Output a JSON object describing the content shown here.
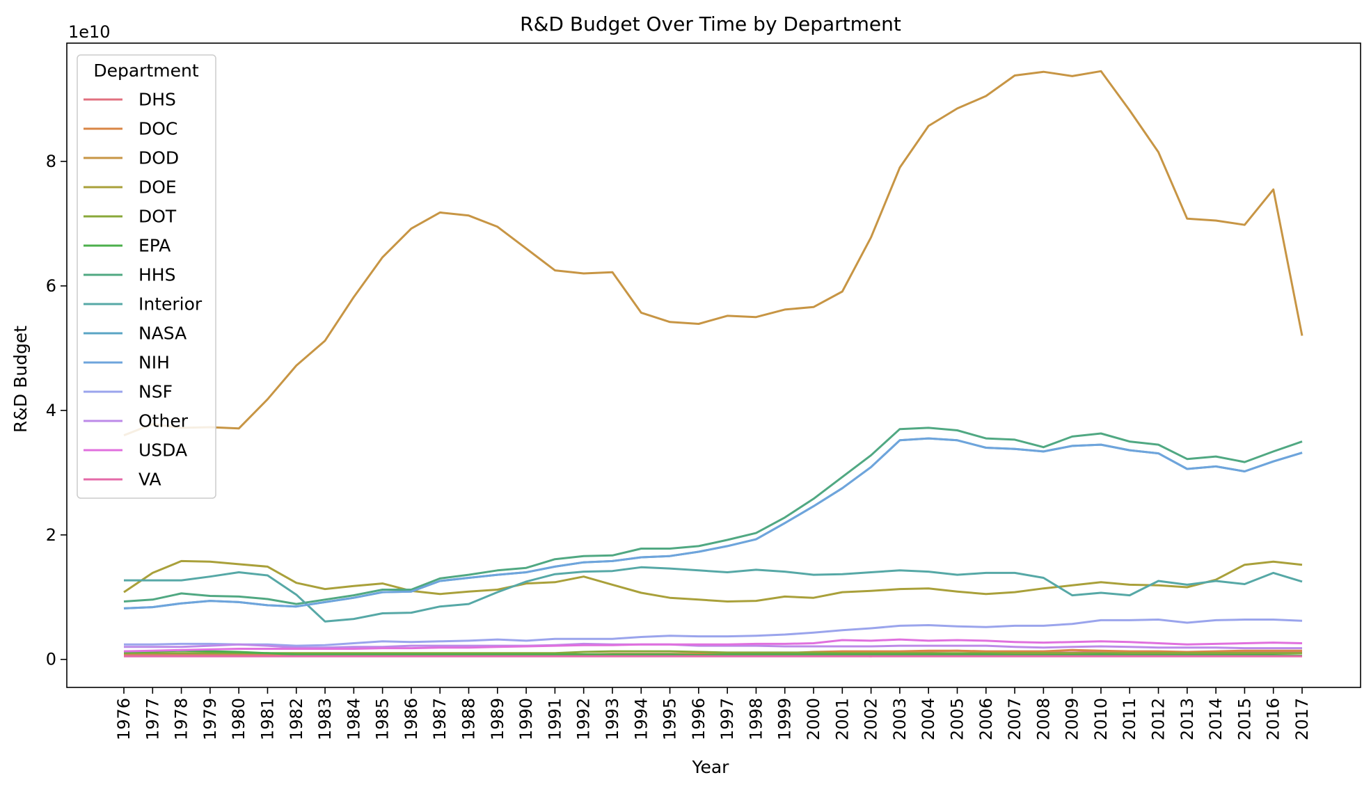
{
  "chart_data": {
    "type": "line",
    "title": "R&D Budget Over Time by Department",
    "xlabel": "Year",
    "ylabel": "R&D Budget",
    "y_offset_label": "1e10",
    "y_scale": 10000000000,
    "ylim": [
      -0.45,
      9.9
    ],
    "yticks": [
      0,
      2,
      4,
      6,
      8
    ],
    "grid": false,
    "legend": {
      "title": "Department",
      "placement": "upper-left"
    },
    "x": [
      "1976",
      "1977",
      "1978",
      "1979",
      "1980",
      "1981",
      "1982",
      "1983",
      "1984",
      "1985",
      "1986",
      "1987",
      "1988",
      "1989",
      "1990",
      "1991",
      "1992",
      "1993",
      "1994",
      "1995",
      "1996",
      "1997",
      "1998",
      "1999",
      "2000",
      "2001",
      "2002",
      "2003",
      "2004",
      "2005",
      "2006",
      "2007",
      "2008",
      "2009",
      "2010",
      "2011",
      "2012",
      "2013",
      "2014",
      "2015",
      "2016",
      "2017"
    ],
    "series": [
      {
        "name": "DHS",
        "color": "#e1707f",
        "values": [
          0.08,
          0.08,
          0.08,
          0.08,
          0.08,
          0.08,
          0.08,
          0.08,
          0.08,
          0.08,
          0.08,
          0.08,
          0.08,
          0.08,
          0.08,
          0.08,
          0.08,
          0.08,
          0.08,
          0.08,
          0.08,
          0.08,
          0.08,
          0.08,
          0.08,
          0.08,
          0.05,
          0.12,
          0.13,
          0.14,
          0.12,
          0.11,
          0.11,
          0.11,
          0.12,
          0.11,
          0.11,
          0.11,
          0.11,
          0.11,
          0.11,
          0.11
        ]
      },
      {
        "name": "DOC",
        "color": "#d98646",
        "values": [
          0.06,
          0.06,
          0.06,
          0.06,
          0.06,
          0.06,
          0.06,
          0.06,
          0.06,
          0.07,
          0.07,
          0.07,
          0.07,
          0.07,
          0.08,
          0.08,
          0.08,
          0.09,
          0.09,
          0.09,
          0.09,
          0.09,
          0.1,
          0.1,
          0.12,
          0.13,
          0.13,
          0.13,
          0.14,
          0.14,
          0.13,
          0.13,
          0.13,
          0.15,
          0.14,
          0.13,
          0.13,
          0.12,
          0.13,
          0.14,
          0.14,
          0.14
        ]
      },
      {
        "name": "DOD",
        "color": "#c79544",
        "values": [
          3.6,
          3.78,
          3.72,
          3.73,
          3.71,
          4.18,
          4.72,
          5.12,
          5.82,
          6.46,
          6.92,
          7.18,
          7.13,
          6.95,
          6.6,
          6.25,
          6.2,
          6.22,
          5.57,
          5.42,
          5.39,
          5.52,
          5.5,
          5.62,
          5.66,
          5.91,
          6.78,
          7.9,
          8.57,
          8.85,
          9.05,
          9.38,
          9.44,
          9.37,
          9.45,
          8.82,
          8.15,
          7.08,
          7.05,
          6.98,
          7.55,
          5.2
        ]
      },
      {
        "name": "DOE",
        "color": "#a9a03a",
        "values": [
          1.08,
          1.39,
          1.58,
          1.57,
          1.53,
          1.49,
          1.23,
          1.13,
          1.18,
          1.22,
          1.1,
          1.05,
          1.09,
          1.12,
          1.22,
          1.24,
          1.33,
          1.2,
          1.07,
          0.99,
          0.96,
          0.93,
          0.94,
          1.01,
          0.99,
          1.08,
          1.1,
          1.13,
          1.14,
          1.09,
          1.05,
          1.08,
          1.14,
          1.19,
          1.24,
          1.2,
          1.19,
          1.16,
          1.28,
          1.52,
          1.57,
          1.52
        ]
      },
      {
        "name": "DOT",
        "color": "#89a83a",
        "values": [
          0.1,
          0.1,
          0.1,
          0.1,
          0.1,
          0.1,
          0.1,
          0.1,
          0.1,
          0.1,
          0.1,
          0.1,
          0.1,
          0.1,
          0.1,
          0.1,
          0.12,
          0.13,
          0.13,
          0.13,
          0.12,
          0.11,
          0.11,
          0.11,
          0.11,
          0.1,
          0.1,
          0.1,
          0.1,
          0.1,
          0.1,
          0.1,
          0.1,
          0.1,
          0.1,
          0.1,
          0.1,
          0.1,
          0.1,
          0.1,
          0.1,
          0.1
        ]
      },
      {
        "name": "EPA",
        "color": "#4caf4c",
        "values": [
          0.12,
          0.13,
          0.14,
          0.13,
          0.12,
          0.1,
          0.08,
          0.08,
          0.08,
          0.08,
          0.08,
          0.08,
          0.08,
          0.08,
          0.08,
          0.08,
          0.08,
          0.08,
          0.08,
          0.08,
          0.07,
          0.08,
          0.08,
          0.08,
          0.08,
          0.08,
          0.08,
          0.08,
          0.08,
          0.08,
          0.08,
          0.07,
          0.07,
          0.07,
          0.08,
          0.07,
          0.07,
          0.07,
          0.07,
          0.07,
          0.07,
          0.06
        ]
      },
      {
        "name": "HHS",
        "color": "#50a882",
        "values": [
          0.93,
          0.96,
          1.06,
          1.02,
          1.01,
          0.97,
          0.89,
          0.96,
          1.03,
          1.12,
          1.12,
          1.3,
          1.36,
          1.43,
          1.47,
          1.61,
          1.66,
          1.67,
          1.78,
          1.78,
          1.82,
          1.92,
          2.03,
          2.28,
          2.58,
          2.93,
          3.28,
          3.7,
          3.72,
          3.68,
          3.55,
          3.53,
          3.41,
          3.58,
          3.63,
          3.5,
          3.45,
          3.22,
          3.26,
          3.17,
          3.34,
          3.5
        ]
      },
      {
        "name": "Interior",
        "color": "#56a8a6",
        "values": [
          1.27,
          1.27,
          1.27,
          1.33,
          1.4,
          1.35,
          1.04,
          0.61,
          0.65,
          0.74,
          0.75,
          0.85,
          0.89,
          1.08,
          1.25,
          1.37,
          1.41,
          1.42,
          1.48,
          1.46,
          1.43,
          1.4,
          1.44,
          1.41,
          1.36,
          1.37,
          1.4,
          1.43,
          1.41,
          1.36,
          1.39,
          1.39,
          1.31,
          1.03,
          1.07,
          1.03,
          1.26,
          1.2,
          1.26,
          1.21,
          1.39,
          1.25
        ]
      },
      {
        "name": "NASA",
        "color": "#5aa4c4",
        "values": [
          0.82,
          0.84,
          0.9,
          0.94,
          0.92,
          0.87,
          0.85,
          0.92,
          0.99,
          1.08,
          1.09,
          1.26,
          1.31,
          1.36,
          1.4,
          1.49,
          1.56,
          1.58,
          1.64,
          1.66,
          1.73,
          1.82,
          1.93,
          2.19,
          2.46,
          2.75,
          3.09,
          3.52,
          3.55,
          3.52,
          3.4,
          3.38,
          3.34,
          3.43,
          3.45,
          3.36,
          3.31,
          3.06,
          3.1,
          3.02,
          3.18,
          3.32
        ]
      },
      {
        "name": "NIH",
        "color": "#6ea4dc",
        "values": [
          0.82,
          0.84,
          0.9,
          0.94,
          0.92,
          0.87,
          0.85,
          0.92,
          0.99,
          1.08,
          1.09,
          1.26,
          1.31,
          1.36,
          1.4,
          1.49,
          1.56,
          1.58,
          1.64,
          1.66,
          1.73,
          1.82,
          1.93,
          2.19,
          2.46,
          2.75,
          3.09,
          3.52,
          3.55,
          3.52,
          3.4,
          3.38,
          3.34,
          3.43,
          3.45,
          3.36,
          3.31,
          3.06,
          3.1,
          3.02,
          3.18,
          3.32
        ]
      },
      {
        "name": "NSF",
        "color": "#9aa4ec",
        "values": [
          0.24,
          0.24,
          0.25,
          0.25,
          0.24,
          0.24,
          0.22,
          0.23,
          0.26,
          0.29,
          0.28,
          0.29,
          0.3,
          0.32,
          0.3,
          0.33,
          0.33,
          0.33,
          0.36,
          0.38,
          0.37,
          0.37,
          0.38,
          0.4,
          0.43,
          0.47,
          0.5,
          0.54,
          0.55,
          0.53,
          0.52,
          0.54,
          0.54,
          0.57,
          0.63,
          0.63,
          0.64,
          0.59,
          0.63,
          0.64,
          0.64,
          0.62
        ]
      },
      {
        "name": "Other",
        "color": "#bc8ae8",
        "values": [
          0.2,
          0.2,
          0.2,
          0.22,
          0.24,
          0.22,
          0.19,
          0.19,
          0.2,
          0.2,
          0.22,
          0.22,
          0.22,
          0.22,
          0.22,
          0.23,
          0.25,
          0.24,
          0.24,
          0.24,
          0.22,
          0.22,
          0.22,
          0.21,
          0.21,
          0.21,
          0.21,
          0.22,
          0.22,
          0.22,
          0.22,
          0.2,
          0.19,
          0.2,
          0.21,
          0.2,
          0.19,
          0.19,
          0.19,
          0.18,
          0.18,
          0.18
        ]
      },
      {
        "name": "USDA",
        "color": "#e070de",
        "values": [
          0.13,
          0.14,
          0.15,
          0.16,
          0.17,
          0.17,
          0.17,
          0.17,
          0.17,
          0.18,
          0.18,
          0.19,
          0.19,
          0.2,
          0.21,
          0.22,
          0.23,
          0.23,
          0.24,
          0.24,
          0.24,
          0.24,
          0.25,
          0.25,
          0.26,
          0.31,
          0.3,
          0.32,
          0.3,
          0.31,
          0.3,
          0.28,
          0.27,
          0.28,
          0.29,
          0.28,
          0.26,
          0.24,
          0.25,
          0.26,
          0.27,
          0.26
        ]
      },
      {
        "name": "VA",
        "color": "#e46aa8",
        "values": [
          0.05,
          0.05,
          0.05,
          0.05,
          0.05,
          0.05,
          0.05,
          0.05,
          0.05,
          0.05,
          0.05,
          0.05,
          0.05,
          0.05,
          0.05,
          0.05,
          0.05,
          0.05,
          0.05,
          0.05,
          0.05,
          0.05,
          0.05,
          0.05,
          0.05,
          0.05,
          0.05,
          0.05,
          0.05,
          0.05,
          0.05,
          0.05,
          0.05,
          0.05,
          0.05,
          0.05,
          0.05,
          0.05,
          0.05,
          0.05,
          0.05,
          0.05
        ]
      }
    ]
  }
}
